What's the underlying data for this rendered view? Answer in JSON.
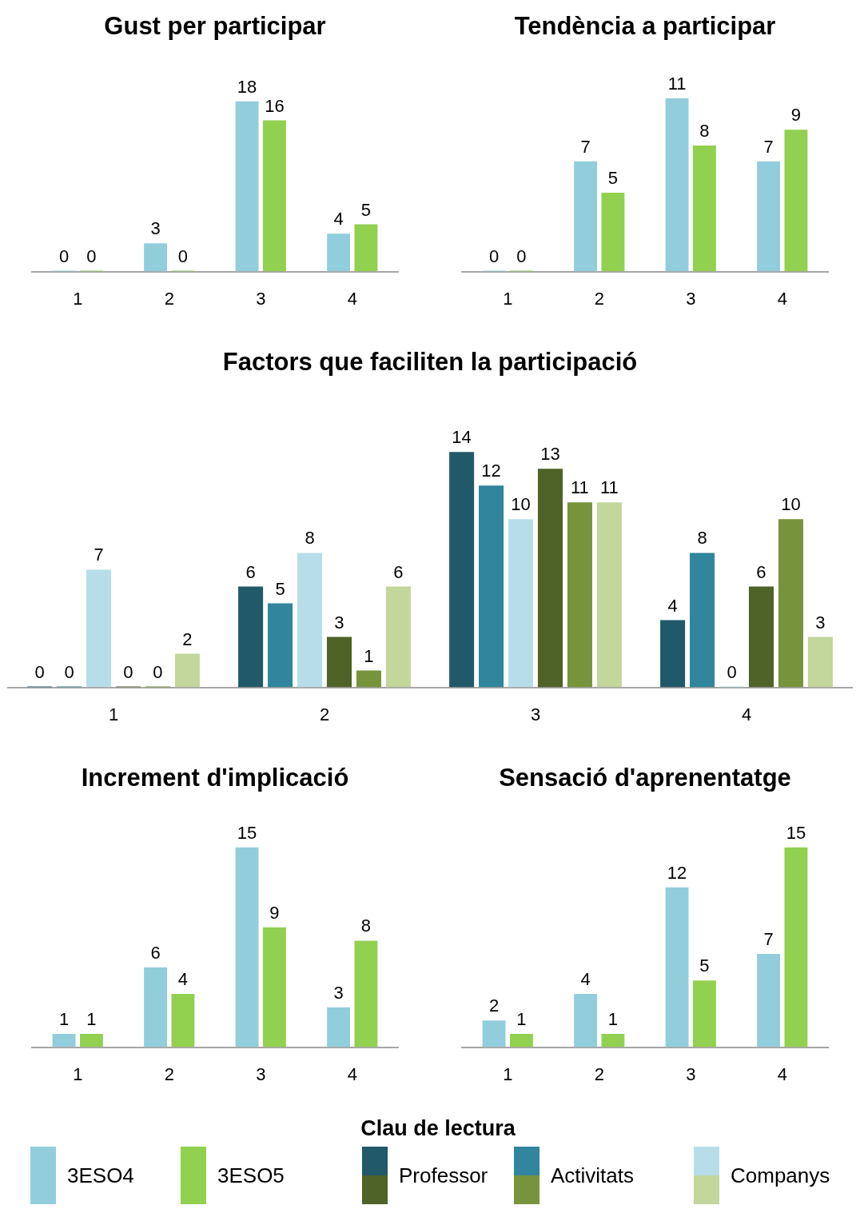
{
  "chart_data": [
    {
      "type": "bar",
      "title": "Gust per participar",
      "categories": [
        "1",
        "2",
        "3",
        "4"
      ],
      "tick_labels": "x",
      "grid": false,
      "data_labels": true,
      "legend": "bottom",
      "series": [
        {
          "name": "3ESO4",
          "color": "#92cddc",
          "values": [
            0,
            3,
            18,
            4
          ]
        },
        {
          "name": "3ESO5",
          "color": "#92d050",
          "values": [
            0,
            0,
            16,
            5
          ]
        }
      ]
    },
    {
      "type": "bar",
      "title": "Tendència a participar",
      "categories": [
        "1",
        "2",
        "3",
        "4"
      ],
      "tick_labels": "x",
      "grid": false,
      "data_labels": true,
      "series": [
        {
          "color": "#92cddc",
          "values": [
            0,
            7,
            11,
            7
          ]
        },
        {
          "color": "#92d050",
          "values": [
            0,
            5,
            8,
            9
          ]
        }
      ]
    },
    {
      "type": "bar",
      "title": "Factors que faciliten la participació",
      "legend_title": "Clau de lectura",
      "categories": [
        "1",
        "2",
        "3",
        "4"
      ],
      "tick_labels": "x",
      "grid": false,
      "data_labels": true,
      "legend": "bottom",
      "series": [
        {
          "name": "Professor",
          "color": "#215968",
          "values": [
            0,
            6,
            14,
            4
          ]
        },
        {
          "name": "Activitats",
          "color": "#31859c",
          "values": [
            0,
            5,
            12,
            8
          ]
        },
        {
          "name": "Companys",
          "color": "#b7dee8",
          "values": [
            7,
            8,
            10,
            0
          ]
        },
        {
          "color": "#4f6228",
          "values": [
            0,
            3,
            13,
            6
          ]
        },
        {
          "color": "#77933c",
          "values": [
            0,
            1,
            11,
            10
          ]
        },
        {
          "color": "#c3d69b",
          "values": [
            2,
            6,
            11,
            3
          ]
        }
      ]
    },
    {
      "type": "bar",
      "title": "Increment d'implicació",
      "categories": [
        "1",
        "2",
        "3",
        "4"
      ],
      "tick_labels": "x",
      "grid": false,
      "data_labels": true,
      "series": [
        {
          "color": "#92cddc",
          "values": [
            1,
            6,
            15,
            3
          ]
        },
        {
          "color": "#92d050",
          "values": [
            1,
            4,
            9,
            8
          ]
        }
      ]
    },
    {
      "type": "bar",
      "title": "Sensació d'aprenentatge",
      "categories": [
        "1",
        "2",
        "3",
        "4"
      ],
      "tick_labels": "x",
      "grid": false,
      "data_labels": true,
      "series": [
        {
          "color": "#92cddc",
          "values": [
            2,
            4,
            12,
            7
          ]
        },
        {
          "color": "#92d050",
          "values": [
            1,
            1,
            5,
            15
          ]
        }
      ]
    }
  ]
}
